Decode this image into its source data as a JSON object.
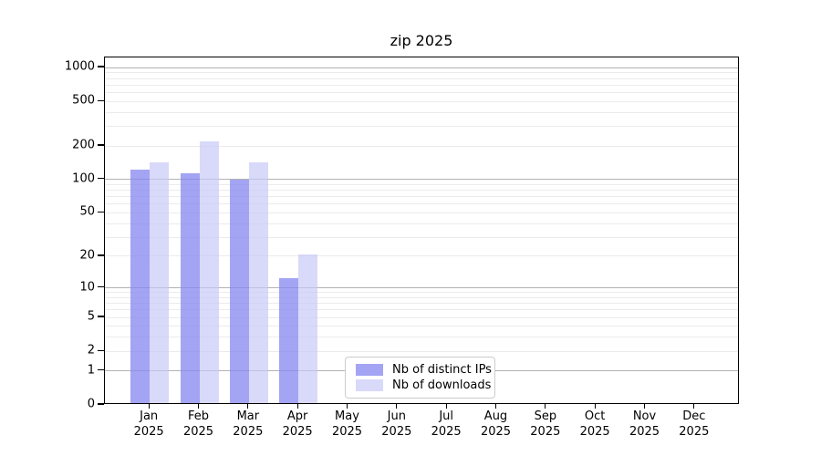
{
  "colors": {
    "ips_bar": "rgba(134,134,240,0.75)",
    "downloads_bar": "rgba(199,199,248,0.68)",
    "grid_major": "#b3b3b3",
    "grid_minor": "#ebebeb",
    "axis": "#000000",
    "legend_border": "#cccccc"
  },
  "chart_data": {
    "type": "bar",
    "title": "zip 2025",
    "xlabel": "",
    "ylabel": "",
    "yscale": "log1p",
    "ylim": [
      0,
      1230
    ],
    "yticks": [
      1000,
      500,
      200,
      100,
      50,
      20,
      10,
      5,
      2,
      1,
      0
    ],
    "major_gridlines": [
      1,
      10,
      100,
      1000
    ],
    "minor_gridlines": [
      2,
      3,
      4,
      5,
      6,
      7,
      8,
      9,
      20,
      30,
      40,
      50,
      60,
      70,
      80,
      90,
      200,
      300,
      400,
      500,
      600,
      700,
      800,
      900
    ],
    "grid": true,
    "legend_position": "lower-center",
    "categories": [
      {
        "month": "Jan",
        "year": "2025"
      },
      {
        "month": "Feb",
        "year": "2025"
      },
      {
        "month": "Mar",
        "year": "2025"
      },
      {
        "month": "Apr",
        "year": "2025"
      },
      {
        "month": "May",
        "year": "2025"
      },
      {
        "month": "Jun",
        "year": "2025"
      },
      {
        "month": "Jul",
        "year": "2025"
      },
      {
        "month": "Aug",
        "year": "2025"
      },
      {
        "month": "Sep",
        "year": "2025"
      },
      {
        "month": "Oct",
        "year": "2025"
      },
      {
        "month": "Nov",
        "year": "2025"
      },
      {
        "month": "Dec",
        "year": "2025"
      }
    ],
    "series": [
      {
        "name": "Nb of distinct IPs",
        "values": [
          118,
          110,
          97,
          12,
          0,
          0,
          0,
          0,
          0,
          0,
          0,
          0
        ]
      },
      {
        "name": "Nb of downloads",
        "values": [
          137,
          213,
          137,
          20,
          0,
          0,
          0,
          0,
          0,
          0,
          0,
          0
        ]
      }
    ]
  }
}
